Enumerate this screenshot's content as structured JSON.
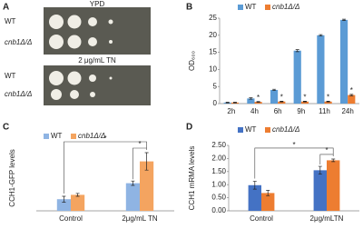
{
  "panel_a": {
    "panel": "A",
    "plates": [
      {
        "title": "YPD",
        "rows": [
          "WT",
          "cnb1Δ/Δ"
        ]
      },
      {
        "title": "2 μg/mL TN",
        "rows": [
          "WT",
          "cnb1Δ/Δ"
        ]
      }
    ]
  },
  "chart_data": [
    {
      "type": "bar",
      "panel": "B",
      "ylabel": "OD₆₀₀",
      "categories": [
        "2h",
        "4h",
        "6h",
        "9h",
        "11h",
        "24h"
      ],
      "series": [
        {
          "name": "WT",
          "color": "#5b9bd5",
          "values": [
            0.3,
            1.5,
            4,
            15.5,
            20,
            24.5
          ],
          "errors": [
            0.1,
            0.2,
            0.2,
            0.3,
            0.2,
            0.2
          ]
        },
        {
          "name": "cnb1Δ/Δ",
          "color": "#ed7d31",
          "values": [
            0.3,
            0.5,
            0.6,
            0.6,
            0.6,
            2.5
          ],
          "errors": [
            0.1,
            0.1,
            0.1,
            0.1,
            0.1,
            0.2
          ],
          "annotations": [
            null,
            "*",
            "*",
            "*",
            "*",
            "*"
          ]
        }
      ],
      "ylim": [
        0,
        25
      ],
      "yticks": [
        0,
        5,
        10,
        15,
        20,
        25
      ],
      "grid": false
    },
    {
      "type": "bar",
      "panel": "C",
      "ylabel": "CCH1-GFP levels",
      "categories": [
        "Control",
        "2μg/mL TN"
      ],
      "series": [
        {
          "name": "WT",
          "color": "#8fb4e3",
          "values": [
            8,
            19
          ],
          "errors": [
            2,
            1.5
          ]
        },
        {
          "name": "cnb1Δ/Δ",
          "color": "#f4a460",
          "values": [
            11,
            34
          ],
          "errors": [
            1,
            6
          ]
        }
      ],
      "ylim": [
        0,
        45
      ],
      "significance": [
        "*",
        "*"
      ]
    },
    {
      "type": "bar",
      "panel": "D",
      "ylabel": "CCH1 mRMA levels",
      "categories": [
        "Control",
        "2μg/mLTN"
      ],
      "series": [
        {
          "name": "WT",
          "color": "#4472c4",
          "values": [
            0.98,
            1.55
          ],
          "errors": [
            0.15,
            0.15
          ]
        },
        {
          "name": "cnb1Δ/Δ",
          "color": "#ed7d31",
          "values": [
            0.68,
            1.93
          ],
          "errors": [
            0.1,
            0.05
          ]
        }
      ],
      "ylim": [
        0,
        2.5
      ],
      "yticks": [
        {
          "value": 0,
          "label": "0.00"
        },
        {
          "value": 0.5,
          "label": "0.50"
        },
        {
          "value": 1,
          "label": "1.00"
        },
        {
          "value": 1.5,
          "label": "1.50"
        },
        {
          "value": 2,
          "label": "2.00"
        },
        {
          "value": 2.5,
          "label": "2.50"
        }
      ],
      "significance": [
        "*",
        "*"
      ]
    }
  ]
}
